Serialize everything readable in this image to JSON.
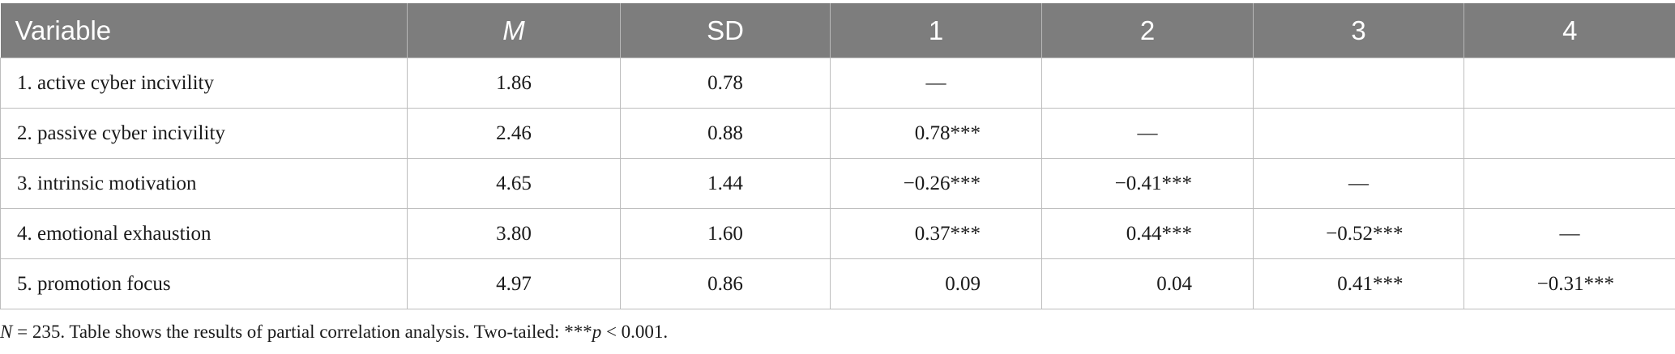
{
  "table": {
    "headers": [
      {
        "label": "Variable",
        "italic": false
      },
      {
        "label": "M",
        "italic": true
      },
      {
        "label": "SD",
        "italic": false
      },
      {
        "label": "1",
        "italic": false
      },
      {
        "label": "2",
        "italic": false
      },
      {
        "label": "3",
        "italic": false
      },
      {
        "label": "4",
        "italic": false
      }
    ],
    "rows": [
      {
        "variable": "1. active cyber incivility",
        "m": "1.86",
        "sd": "0.78",
        "c1": "—",
        "c2": "",
        "c3": "",
        "c4": ""
      },
      {
        "variable": "2. passive cyber incivility",
        "m": "2.46",
        "sd": "0.88",
        "c1": "0.78***",
        "c2": "—",
        "c3": "",
        "c4": ""
      },
      {
        "variable": "3. intrinsic motivation",
        "m": "4.65",
        "sd": "1.44",
        "c1": "−0.26***",
        "c2": "−0.41***",
        "c3": "—",
        "c4": ""
      },
      {
        "variable": "4. emotional exhaustion",
        "m": "3.80",
        "sd": "1.60",
        "c1": "0.37***",
        "c2": "0.44***",
        "c3": "−0.52***",
        "c4": "—"
      },
      {
        "variable": "5. promotion focus",
        "m": "4.97",
        "sd": "0.86",
        "c1": "0.09",
        "c2": "0.04",
        "c3": "0.41***",
        "c4": "−0.31***"
      }
    ]
  },
  "note": {
    "n_label": "N",
    "n_value": " = 235. Table shows the results of partial correlation analysis. Two-tailed: ***",
    "p_label": "p",
    "p_value": " < 0.001."
  },
  "colors": {
    "header_bg": "#7d7d7d",
    "header_text": "#ffffff",
    "grid": "#bdbdbd",
    "text": "#1a1a1a"
  }
}
